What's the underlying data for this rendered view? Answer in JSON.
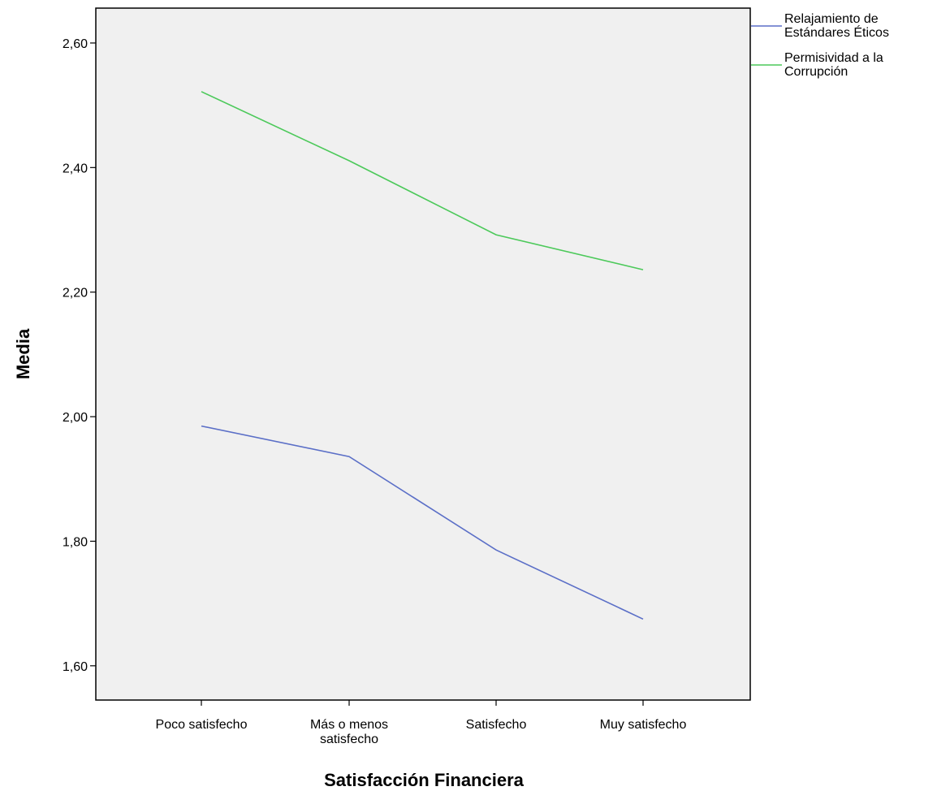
{
  "chart_data": {
    "type": "line",
    "xlabel": "Satisfacción Financiera",
    "ylabel": "Media",
    "categories": [
      [
        "Poco satisfecho"
      ],
      [
        "Más o menos",
        "satisfecho"
      ],
      [
        "Satisfecho"
      ],
      [
        "Muy satisfecho"
      ]
    ],
    "y_ticks": [
      "1,60",
      "1,80",
      "2,00",
      "2,20",
      "2,40",
      "2,60"
    ],
    "ylim": [
      1.545,
      2.656
    ],
    "grid": false,
    "legend_position": "right-top",
    "series": [
      {
        "name": [
          "Relajamiento de",
          "Estándares Éticos"
        ],
        "color": "#5b6fc7",
        "values": [
          1.985,
          1.936,
          1.786,
          1.675
        ]
      },
      {
        "name": [
          "Permisividad a la",
          "Corrupción"
        ],
        "color": "#4cc95a",
        "values": [
          2.522,
          2.411,
          2.292,
          2.236
        ]
      }
    ],
    "plot_background": "#f0f0f0"
  }
}
